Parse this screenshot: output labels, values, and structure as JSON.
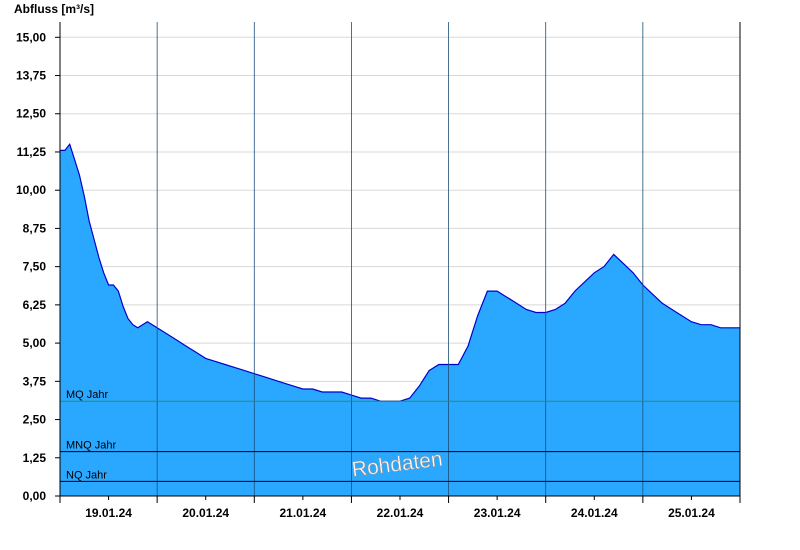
{
  "chart_data": {
    "type": "area",
    "ylabel": "Abfluss [m³/s]",
    "ylim": [
      0,
      15.5
    ],
    "yticks": [
      "0,00",
      "1,25",
      "2,50",
      "3,75",
      "5,00",
      "6,25",
      "7,50",
      "8,75",
      "10,00",
      "11,25",
      "12,50",
      "13,75",
      "15,00"
    ],
    "ytick_values": [
      0,
      1.25,
      2.5,
      3.75,
      5.0,
      6.25,
      7.5,
      8.75,
      10.0,
      11.25,
      12.5,
      13.75,
      15.0
    ],
    "xticks": [
      "19.01.24",
      "20.01.24",
      "21.01.24",
      "22.01.24",
      "23.01.24",
      "24.01.24",
      "25.01.24"
    ],
    "xlim_days": [
      0.0,
      7.0
    ],
    "series": [
      {
        "x_days": [
          0.0,
          0.05,
          0.1,
          0.15,
          0.2,
          0.25,
          0.3,
          0.35,
          0.4,
          0.45,
          0.5,
          0.55,
          0.6,
          0.65,
          0.7,
          0.75,
          0.8,
          0.85,
          0.9,
          0.95,
          1.0,
          1.1,
          1.2,
          1.3,
          1.4,
          1.5,
          1.6,
          1.7,
          1.8,
          1.9,
          2.0,
          2.1,
          2.2,
          2.3,
          2.4,
          2.5,
          2.6,
          2.7,
          2.8,
          2.9,
          3.0,
          3.1,
          3.2,
          3.3,
          3.4,
          3.5,
          3.6,
          3.7,
          3.8,
          3.9,
          4.0,
          4.1,
          4.2,
          4.3,
          4.4,
          4.5,
          4.6,
          4.7,
          4.8,
          4.9,
          5.0,
          5.1,
          5.2,
          5.3,
          5.4,
          5.5,
          5.6,
          5.7,
          5.8,
          5.9,
          6.0,
          6.1,
          6.2,
          6.3,
          6.4,
          6.5,
          6.6,
          6.7,
          6.8,
          6.9,
          7.0
        ],
        "values": [
          11.3,
          11.3,
          11.5,
          11.0,
          10.5,
          9.8,
          9.0,
          8.4,
          7.8,
          7.3,
          6.9,
          6.9,
          6.7,
          6.2,
          5.8,
          5.6,
          5.5,
          5.6,
          5.7,
          5.6,
          5.5,
          5.3,
          5.1,
          4.9,
          4.7,
          4.5,
          4.4,
          4.3,
          4.2,
          4.1,
          4.0,
          3.9,
          3.8,
          3.7,
          3.6,
          3.5,
          3.5,
          3.4,
          3.4,
          3.4,
          3.3,
          3.2,
          3.2,
          3.1,
          3.1,
          3.1,
          3.2,
          3.6,
          4.1,
          4.3,
          4.3,
          4.3,
          4.9,
          5.9,
          6.7,
          6.7,
          6.5,
          6.3,
          6.1,
          6.0,
          6.0,
          6.1,
          6.3,
          6.7,
          7.0,
          7.3,
          7.5,
          7.9,
          7.6,
          7.3,
          6.9,
          6.6,
          6.3,
          6.1,
          5.9,
          5.7,
          5.6,
          5.6,
          5.5,
          5.5,
          5.5
        ]
      }
    ],
    "reference_lines": [
      {
        "label": "MQ Jahr",
        "value": 3.1,
        "color": "#2e8b57"
      },
      {
        "label": "MNQ Jahr",
        "value": 1.45,
        "color": "#000000"
      },
      {
        "label": "NQ Jahr",
        "value": 0.48,
        "color": "#000000"
      }
    ],
    "watermark": "Rohdaten",
    "colors": {
      "fill": "#2aa8ff",
      "line": "#0000cc",
      "grid": "#d8d8d8",
      "axis": "#000000",
      "day_divider": "#1a4f7a"
    },
    "grid": true
  }
}
